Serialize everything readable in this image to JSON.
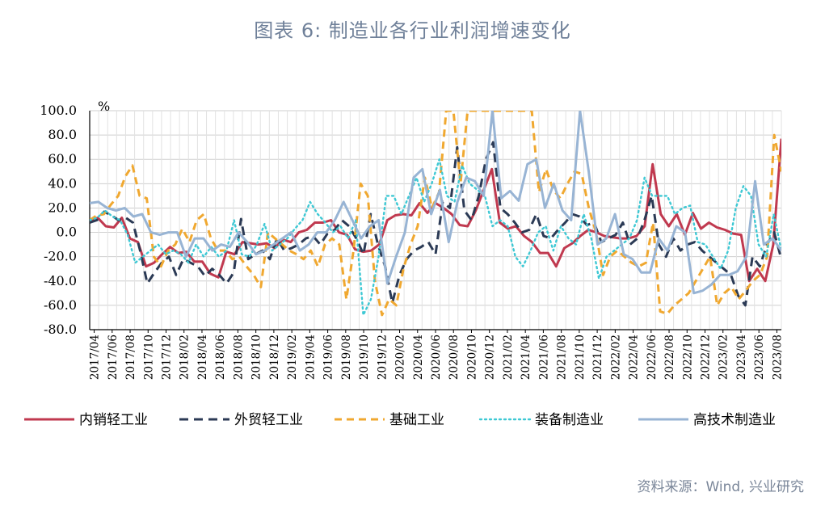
{
  "title": "图表 6:  制造业各行业利润增速变化",
  "source": "资料来源：Wind, 兴业研究",
  "chart_data": {
    "type": "line",
    "ylabel": "%",
    "ylim": [
      -80,
      100
    ],
    "yticks": [
      "100.0",
      "80.0",
      "60.0",
      "40.0",
      "20.0",
      "0.0",
      "-20.0",
      "-40.0",
      "-60.0",
      "-80.0"
    ],
    "xticks": [
      "2017/04",
      "2017/06",
      "2017/08",
      "2017/10",
      "2017/12",
      "2018/02",
      "2018/04",
      "2018/06",
      "2018/08",
      "2018/10",
      "2018/12",
      "2019/02",
      "2019/04",
      "2019/06",
      "2019/08",
      "2019/10",
      "2019/12",
      "2020/02",
      "2020/04",
      "2020/06",
      "2020/08",
      "2020/10",
      "2020/12",
      "2021/02",
      "2021/04",
      "2021/06",
      "2021/08",
      "2021/10",
      "2021/12",
      "2022/02",
      "2022/04",
      "2022/06",
      "2022/08",
      "2022/10",
      "2022/12",
      "2023/02",
      "2023/04",
      "2023/06",
      "2023/08"
    ],
    "legend_position": "bottom",
    "series": [
      {
        "name": "内销轻工业",
        "color": "#c0394f",
        "dash": "solid",
        "values": [
          10,
          12,
          5,
          4,
          12,
          -5,
          -8,
          -28,
          -25,
          -18,
          -12,
          -17,
          -16,
          -24,
          -24,
          -34,
          -37,
          -16,
          -18,
          -8,
          -9,
          -10,
          -9,
          -13,
          -6,
          -8,
          0,
          2,
          8,
          8,
          10,
          0,
          -2,
          -14,
          -16,
          -15,
          -10,
          10,
          14,
          15,
          14,
          24,
          16,
          24,
          20,
          15,
          6,
          5,
          18,
          35,
          52,
          8,
          3,
          5,
          -3,
          -8,
          -17,
          -17,
          -28,
          -13,
          -9,
          -3,
          2,
          0,
          -3,
          -4,
          -5,
          -5,
          -3,
          5,
          56,
          15,
          5,
          15,
          -2,
          16,
          3,
          8,
          4,
          2,
          -1,
          -2,
          -40,
          -30,
          -40,
          -10,
          77
        ]
      },
      {
        "name": "外贸轻工业",
        "color": "#2b3a55",
        "dash": "11,7",
        "values": [
          8,
          10,
          17,
          14,
          10,
          12,
          8,
          -15,
          -42,
          -33,
          -25,
          -20,
          -35,
          -22,
          -25,
          -28,
          -36,
          -30,
          -35,
          -42,
          -33,
          11,
          -22,
          -18,
          -15,
          -22,
          -5,
          -15,
          -13,
          -10,
          -5,
          -3,
          -10,
          -1,
          2,
          10,
          5,
          -5,
          -18,
          15,
          -10,
          -28,
          -58,
          -35,
          -22,
          -15,
          -12,
          -8,
          -18,
          25,
          20,
          70,
          18,
          10,
          30,
          60,
          74,
          20,
          15,
          8,
          0,
          2,
          15,
          -3,
          -5,
          2,
          8,
          15,
          13,
          6,
          8,
          -8,
          -5,
          -2,
          8,
          -10,
          -5,
          10,
          30,
          -10,
          -20,
          -5,
          -15,
          -10,
          -8,
          -15,
          -20,
          -25,
          -30,
          -35,
          -52,
          -60,
          -20,
          -28,
          -10,
          0,
          -22
        ]
      },
      {
        "name": "基础工业",
        "color": "#f0a830",
        "dash": "9,6",
        "values": [
          10,
          14,
          15,
          23,
          30,
          46,
          55,
          30,
          28,
          -20,
          -28,
          -15,
          -10,
          3,
          -8,
          10,
          15,
          -5,
          -15,
          -15,
          -22,
          -20,
          -28,
          -35,
          -45,
          0,
          -5,
          -10,
          -15,
          -18,
          -22,
          -15,
          -28,
          -10,
          -5,
          -10,
          -55,
          -15,
          40,
          30,
          -40,
          -68,
          -55,
          -60,
          -30,
          -10,
          5,
          45,
          20,
          33,
          100,
          100,
          40,
          100,
          100,
          100,
          100,
          100,
          100,
          100,
          100,
          100,
          100,
          33,
          52,
          35,
          28,
          40,
          50,
          48,
          20,
          0,
          -35,
          -20,
          -15,
          -20,
          -25,
          -28,
          -25,
          8,
          -65,
          -67,
          -60,
          -55,
          -50,
          -40,
          -30,
          -20,
          -60,
          -50,
          -45,
          -55,
          -48,
          -40,
          -35,
          -20,
          80,
          50
        ]
      },
      {
        "name": "装备制造业",
        "color": "#3ec8d4",
        "dash": "2,4",
        "values": [
          10,
          12,
          18,
          13,
          10,
          -2,
          -25,
          -20,
          -15,
          -10,
          -18,
          -15,
          -18,
          -25,
          -10,
          -20,
          -12,
          -20,
          -15,
          10,
          -18,
          -20,
          -10,
          7,
          -15,
          -10,
          -5,
          3,
          10,
          25,
          15,
          8,
          0,
          5,
          -5,
          10,
          -68,
          -55,
          -20,
          30,
          30,
          15,
          30,
          45,
          25,
          40,
          60,
          30,
          25,
          55,
          40,
          35,
          30,
          5,
          10,
          5,
          -20,
          -28,
          -15,
          0,
          5,
          -15,
          5,
          -5,
          -10,
          15,
          -5,
          -38,
          -20,
          -15,
          -10,
          -5,
          10,
          45,
          30,
          30,
          30,
          15,
          20,
          22,
          -8,
          -10,
          -20,
          -30,
          -15,
          20,
          38,
          30,
          -10,
          -20,
          15,
          -15
        ]
      },
      {
        "name": "高技术制造业",
        "color": "#98b4d4",
        "dash": "solid",
        "values": [
          24,
          25,
          20,
          18,
          20,
          13,
          15,
          0,
          -2,
          0,
          0,
          -20,
          -5,
          -5,
          -15,
          -10,
          -12,
          0,
          -8,
          -18,
          -15,
          -10,
          -5,
          0,
          -15,
          -10,
          0,
          0,
          10,
          25,
          10,
          -5,
          5,
          10,
          -42,
          -20,
          0,
          45,
          52,
          15,
          35,
          -8,
          25,
          45,
          42,
          30,
          100,
          28,
          34,
          26,
          56,
          60,
          20,
          40,
          18,
          10,
          100,
          50,
          -10,
          -5,
          15,
          -18,
          -22,
          -33,
          -33,
          -5,
          -15,
          5,
          0,
          -50,
          -48,
          -43,
          -35,
          -35,
          -32,
          -20,
          42,
          -10,
          -5,
          -15
        ]
      }
    ]
  }
}
